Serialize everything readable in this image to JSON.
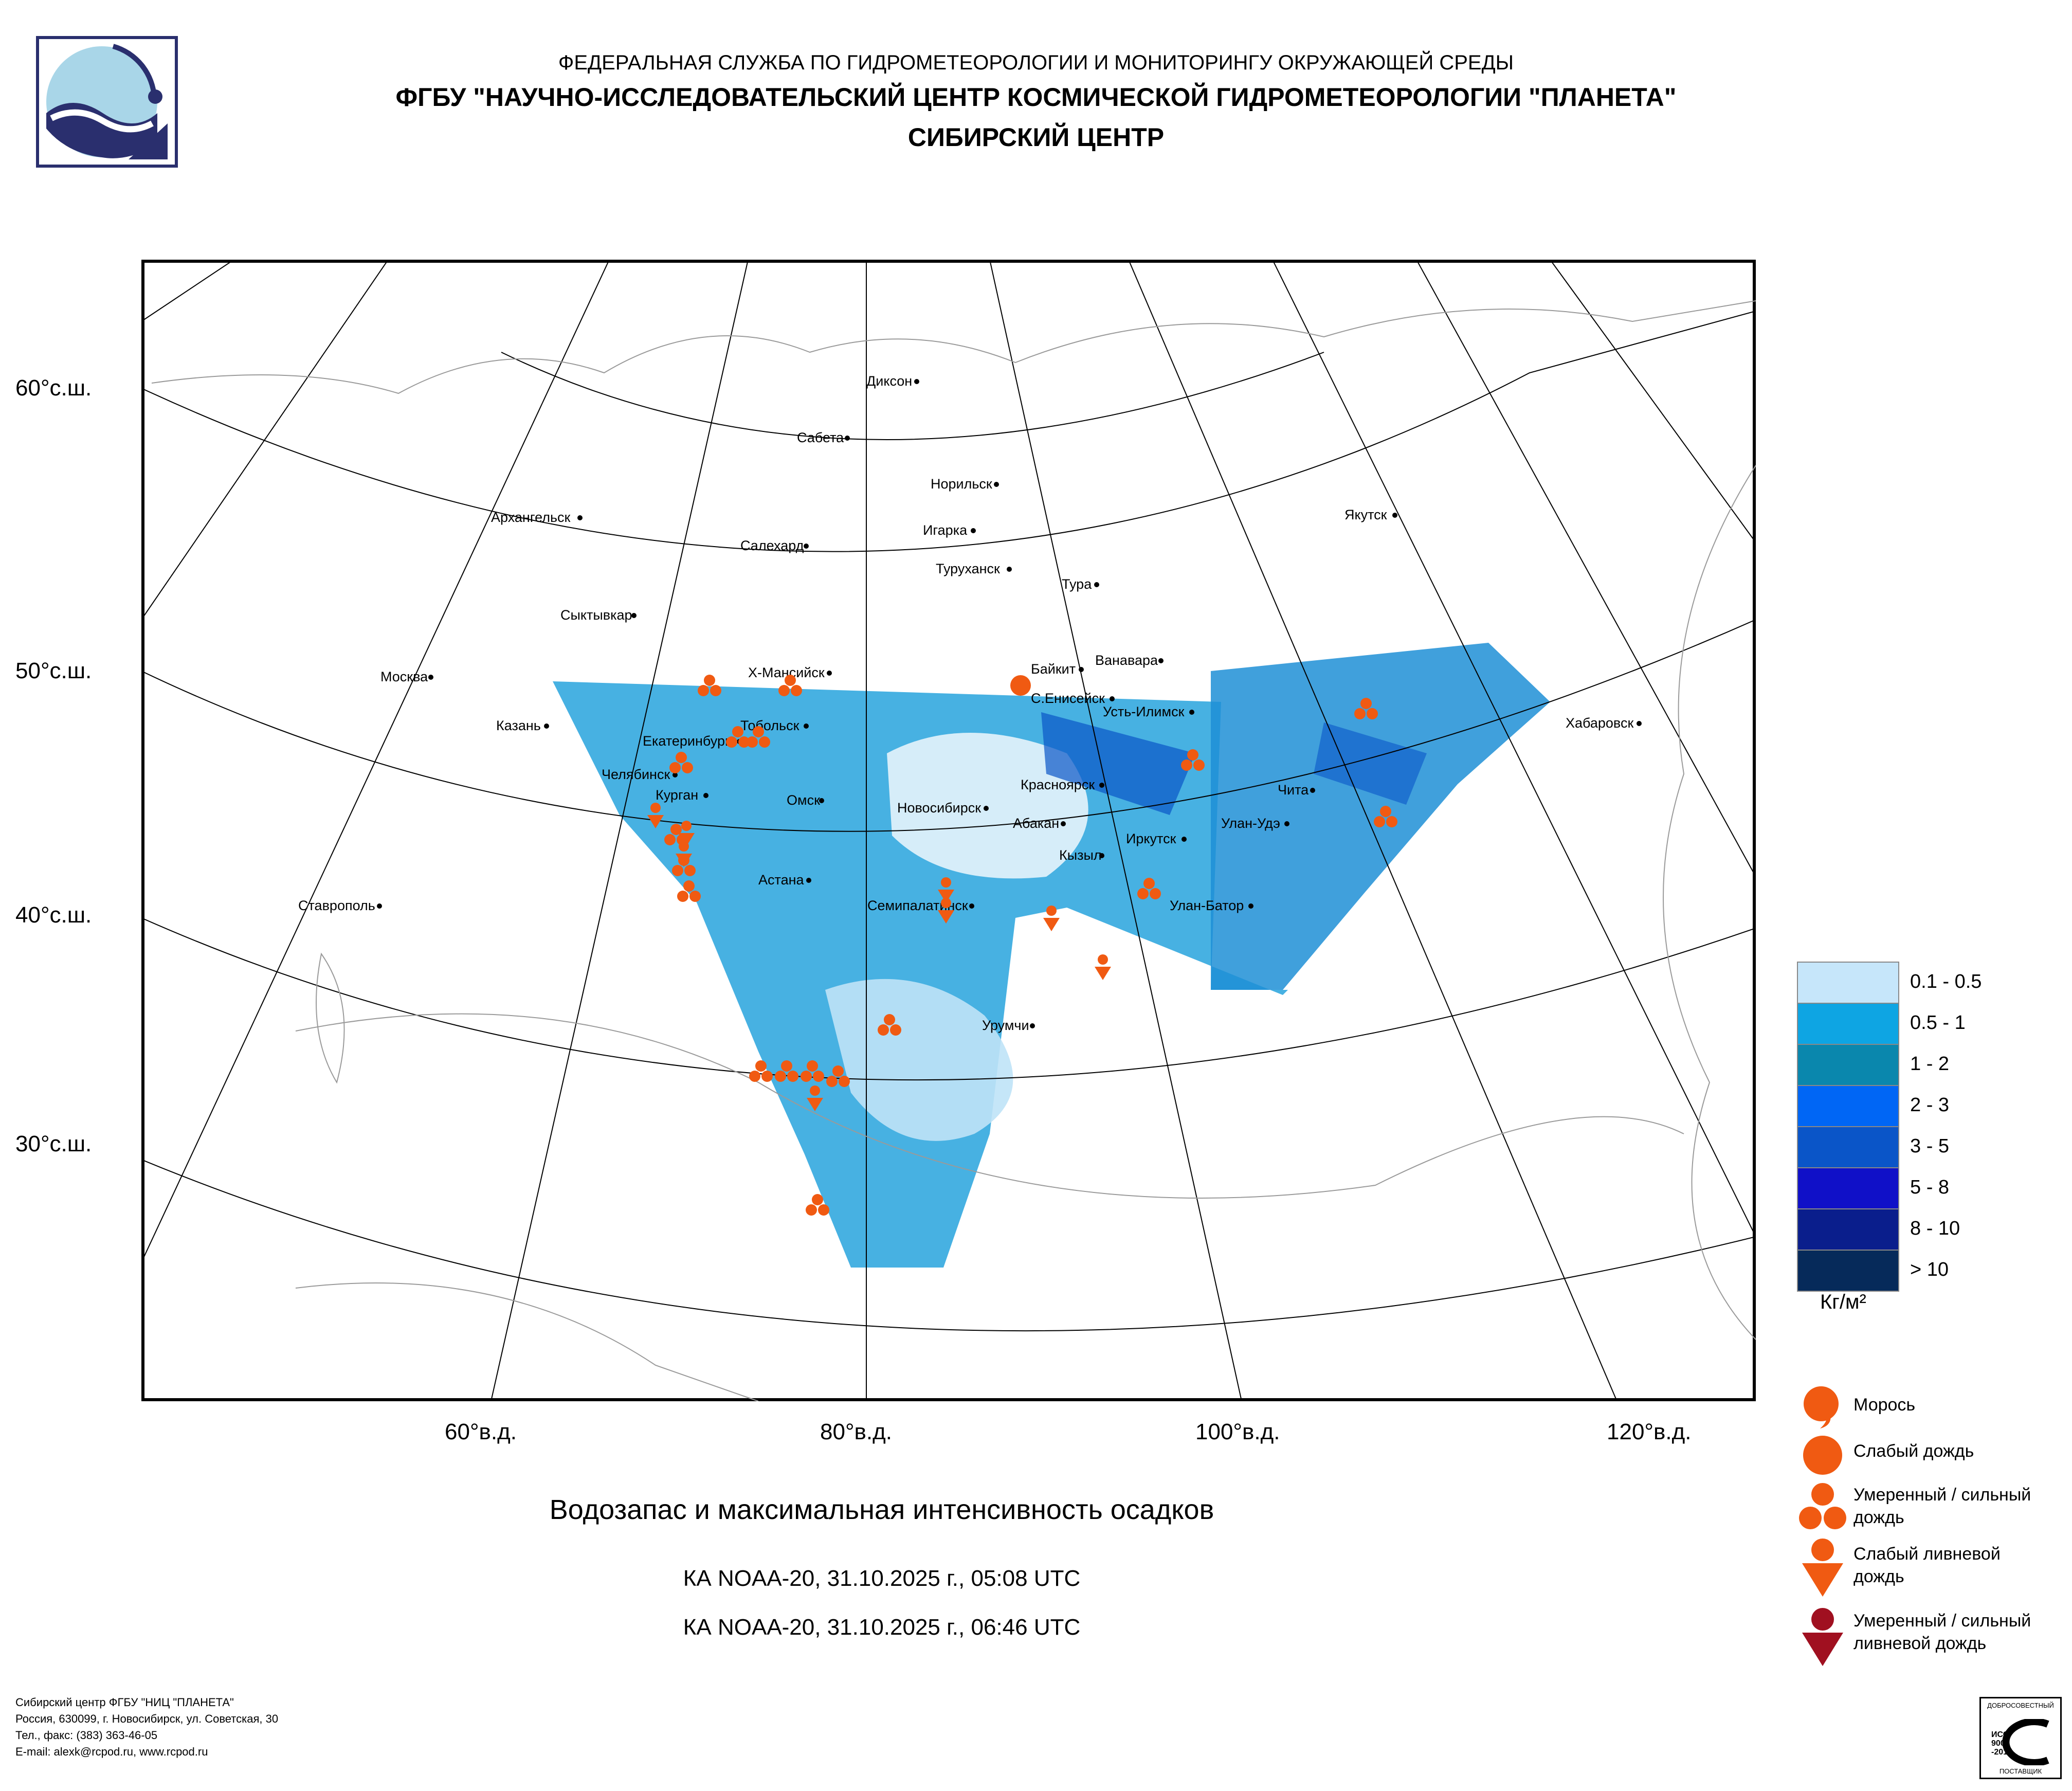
{
  "header": {
    "line1": "ФЕДЕРАЛЬНАЯ СЛУЖБА ПО ГИДРОМЕТЕОРОЛОГИИ И МОНИТОРИНГУ ОКРУЖАЮЩЕЙ СРЕДЫ",
    "line2": "ФГБУ \"НАУЧНО-ИССЛЕДОВАТЕЛЬСКИЙ ЦЕНТР КОСМИЧЕСКОЙ ГИДРОМЕТЕОРОЛОГИИ \"ПЛАНЕТА\"",
    "line3": "СИБИРСКИЙ ЦЕНТР"
  },
  "map": {
    "lat_labels": [
      "60°с.ш.",
      "50°с.ш.",
      "40°с.ш.",
      "30°с.ш."
    ],
    "lon_labels": [
      "60°в.д.",
      "80°в.д.",
      "100°в.д.",
      "120°в.д."
    ],
    "cities": [
      {
        "name": "Диксон"
      },
      {
        "name": "Сабета"
      },
      {
        "name": "Норильск"
      },
      {
        "name": "Игарка"
      },
      {
        "name": "Туруханск"
      },
      {
        "name": "Тура"
      },
      {
        "name": "Якутск"
      },
      {
        "name": "Архангельск"
      },
      {
        "name": "Салехард"
      },
      {
        "name": "Сыктывкар"
      },
      {
        "name": "Москва"
      },
      {
        "name": "Х-Мансийск"
      },
      {
        "name": "Байкит"
      },
      {
        "name": "Ванавара"
      },
      {
        "name": "С.Енисейск"
      },
      {
        "name": "Усть-Илимск"
      },
      {
        "name": "Хабаровск"
      },
      {
        "name": "Казань"
      },
      {
        "name": "Екатеринбург"
      },
      {
        "name": "Тобольск"
      },
      {
        "name": "Челябинск"
      },
      {
        "name": "Курган"
      },
      {
        "name": "Омск"
      },
      {
        "name": "Новосибирск"
      },
      {
        "name": "Красноярск"
      },
      {
        "name": "Чита"
      },
      {
        "name": "Абакан"
      },
      {
        "name": "Улан-Удэ"
      },
      {
        "name": "Иркутск"
      },
      {
        "name": "Кызыл"
      },
      {
        "name": "Астана"
      },
      {
        "name": "Улан-Батор"
      },
      {
        "name": "Семипалатинск"
      },
      {
        "name": "Ставрополь"
      },
      {
        "name": "Урумчи"
      }
    ]
  },
  "legend": {
    "ranges": [
      "0.1 - 0.5",
      "0.5 - 1",
      "1 - 2",
      "2 - 3",
      "3 - 5",
      "5 - 8",
      "8 - 10",
      "> 10"
    ],
    "colors": [
      "#c6e6fa",
      "#0ea5e3",
      "#0a87ad",
      "#0066f5",
      "#0a55c8",
      "#1010c8",
      "#0a1e8c",
      "#062a5a"
    ],
    "unit": "Кг/м²"
  },
  "symbols": [
    {
      "label": "Морось",
      "icon": "drizzle-icon",
      "color": "#f05a12"
    },
    {
      "label": "Слабый дождь",
      "icon": "light-rain-icon",
      "color": "#f05a12"
    },
    {
      "label": "Умеренный / сильный дождь",
      "icon": "moderate-rain-icon",
      "color": "#f05a12"
    },
    {
      "label": "Слабый ливневой дождь",
      "icon": "light-shower-icon",
      "color": "#f05a12"
    },
    {
      "label": "Умеренный / сильный ливневой дождь",
      "icon": "heavy-shower-icon",
      "color": "#a01020"
    }
  ],
  "caption": {
    "title": "Водозапас и максимальная интенсивность осадков",
    "pass1": "КА NOAA-20, 31.10.2025 г., 05:08 UTC",
    "pass2": "КА NOAA-20, 31.10.2025 г., 06:46 UTC"
  },
  "footer": {
    "line1": "Сибирский центр ФГБУ \"НИЦ \"ПЛАНЕТА\"",
    "line2": "Россия, 630099, г. Новосибирск, ул. Советская, 30",
    "line3": "Тел., факс: (383) 363-46-05",
    "line4": "E-mail: alexk@rcpod.ru, www.rcpod.ru"
  },
  "cert": {
    "top": "ДОБРОСОВЕСТНЫЙ",
    "mid": "ИСО 9001 -2015",
    "bottom": "ПОСТАВЩИК"
  }
}
